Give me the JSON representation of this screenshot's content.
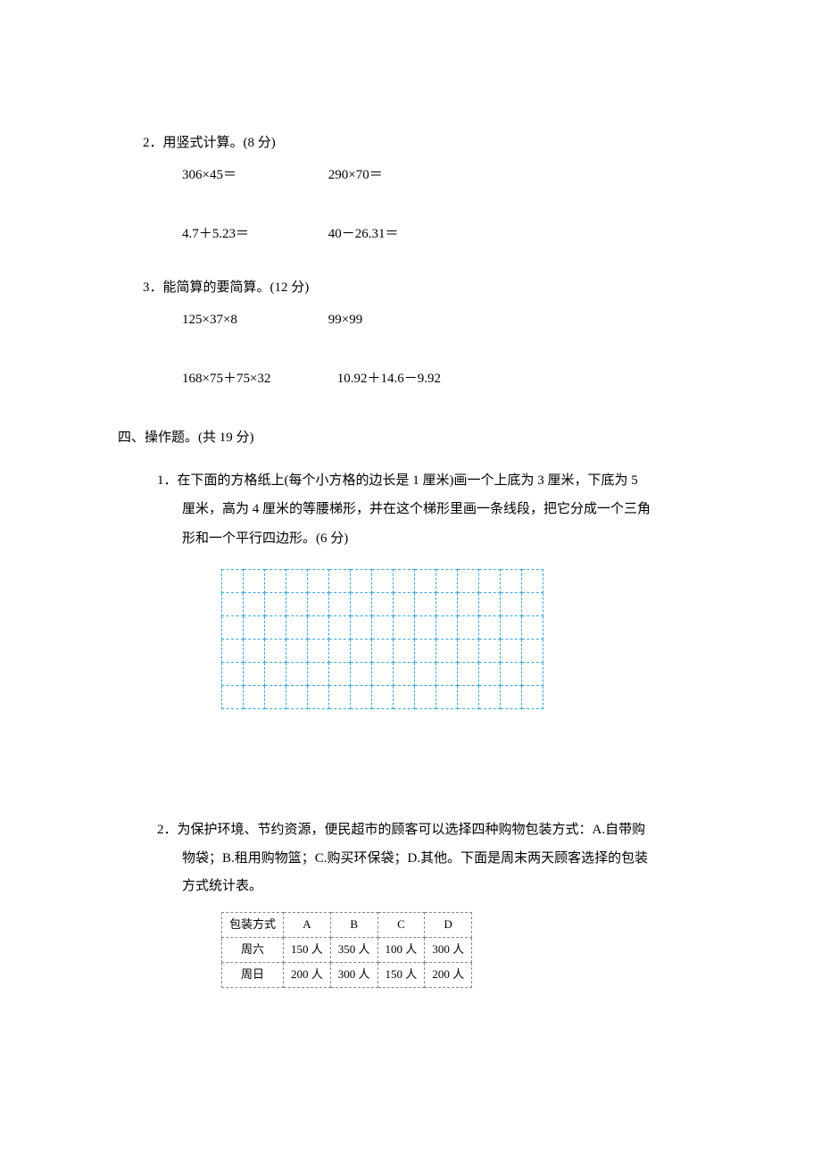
{
  "q2": {
    "label": "2．用竖式计算。(8 分)",
    "rows": [
      [
        "306×45＝",
        "290×70＝"
      ],
      [
        "4.7＋5.23＝",
        "40－26.31＝"
      ]
    ]
  },
  "q3": {
    "label": "3．能简算的要简算。(12 分)",
    "rows": [
      [
        "125×37×8",
        "99×99"
      ],
      [
        "168×75＋75×32",
        "10.92＋14.6－9.92"
      ]
    ]
  },
  "section4": {
    "heading": "四、操作题。(共 19 分)",
    "q1": {
      "label": "1．",
      "line1": "在下面的方格纸上(每个小方格的边长是 1 厘米)画一个上底为 3 厘米，下底为 5",
      "line2": "厘米，高为 4 厘米的等腰梯形，并在这个梯形里画一条线段，把它分成一个三角",
      "line3": "形和一个平行四边形。(6 分)",
      "grid": {
        "rows": 6,
        "cols": 15
      }
    },
    "q2": {
      "label": "2．",
      "line1": "为保护环境、节约资源，便民超市的顾客可以选择四种购物包装方式：A.自带购",
      "line2": "物袋；B.租用购物篮；C.购买环保袋；D.其他。下面是周末两天顾客选择的包装",
      "line3": "方式统计表。",
      "table": {
        "header": [
          "包装方式",
          "A",
          "B",
          "C",
          "D"
        ],
        "rows": [
          {
            "label": "周六",
            "cells": [
              "150 人",
              "350 人",
              "100 人",
              "300 人"
            ]
          },
          {
            "label": "周日",
            "cells": [
              "200 人",
              "300 人",
              "150 人",
              "200 人"
            ]
          }
        ]
      }
    }
  }
}
